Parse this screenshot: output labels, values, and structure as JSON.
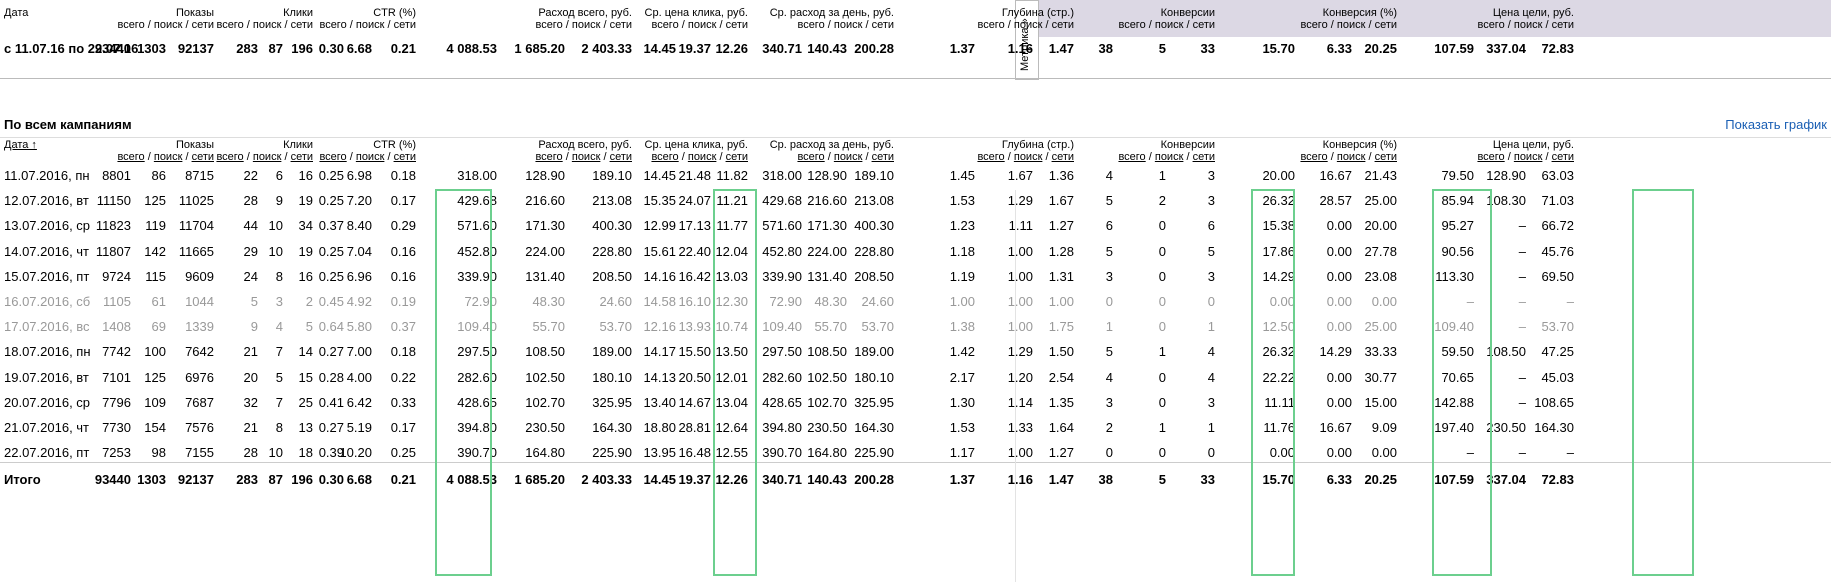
{
  "top": {
    "date_label": "Дата",
    "period": "с 11.07.16 по 22.07.16",
    "metrika": "Метрика »",
    "values": [
      "93440",
      "1303",
      "92137",
      "283",
      "87",
      "196",
      "0.30",
      "6.68",
      "0.21",
      "4 088.53",
      "1 685.20",
      "2 403.33",
      "14.45",
      "19.37",
      "12.26",
      "340.71",
      "140.43",
      "200.28",
      "1.37",
      "1.16",
      "1.47",
      "38",
      "5",
      "33",
      "15.70",
      "6.33",
      "20.25",
      "107.59",
      "337.04",
      "72.83"
    ]
  },
  "headers": {
    "shows": "Показы",
    "clicks": "Клики",
    "ctr": "CTR (%)",
    "spend": "Расход всего, руб.",
    "cpc": "Ср. цена клика, руб.",
    "daily": "Ср. расход за день, руб.",
    "depth": "Глубина (стр.)",
    "conv": "Конверсии",
    "conv_pct": "Конверсия (%)",
    "goal_price": "Цена цели, руб.",
    "sub": "всего / поиск / сети"
  },
  "section": {
    "title": "По всем кампаниям",
    "show_chart": "Показать график",
    "date_sort": "Дата ↑"
  },
  "rows": [
    {
      "date": "11.07.2016, пн",
      "muted": false,
      "v": [
        "8801",
        "86",
        "8715",
        "22",
        "6",
        "16",
        "0.25",
        "6.98",
        "0.18",
        "318.00",
        "128.90",
        "189.10",
        "14.45",
        "21.48",
        "11.82",
        "318.00",
        "128.90",
        "189.10",
        "1.45",
        "1.67",
        "1.36",
        "4",
        "1",
        "3",
        "20.00",
        "16.67",
        "21.43",
        "79.50",
        "128.90",
        "63.03"
      ]
    },
    {
      "date": "12.07.2016, вт",
      "muted": false,
      "v": [
        "11150",
        "125",
        "11025",
        "28",
        "9",
        "19",
        "0.25",
        "7.20",
        "0.17",
        "429.68",
        "216.60",
        "213.08",
        "15.35",
        "24.07",
        "11.21",
        "429.68",
        "216.60",
        "213.08",
        "1.53",
        "1.29",
        "1.67",
        "5",
        "2",
        "3",
        "26.32",
        "28.57",
        "25.00",
        "85.94",
        "108.30",
        "71.03"
      ]
    },
    {
      "date": "13.07.2016, ср",
      "muted": false,
      "v": [
        "11823",
        "119",
        "11704",
        "44",
        "10",
        "34",
        "0.37",
        "8.40",
        "0.29",
        "571.60",
        "171.30",
        "400.30",
        "12.99",
        "17.13",
        "11.77",
        "571.60",
        "171.30",
        "400.30",
        "1.23",
        "1.11",
        "1.27",
        "6",
        "0",
        "6",
        "15.38",
        "0.00",
        "20.00",
        "95.27",
        "–",
        "66.72"
      ]
    },
    {
      "date": "14.07.2016, чт",
      "muted": false,
      "v": [
        "11807",
        "142",
        "11665",
        "29",
        "10",
        "19",
        "0.25",
        "7.04",
        "0.16",
        "452.80",
        "224.00",
        "228.80",
        "15.61",
        "22.40",
        "12.04",
        "452.80",
        "224.00",
        "228.80",
        "1.18",
        "1.00",
        "1.28",
        "5",
        "0",
        "5",
        "17.86",
        "0.00",
        "27.78",
        "90.56",
        "–",
        "45.76"
      ]
    },
    {
      "date": "15.07.2016, пт",
      "muted": false,
      "v": [
        "9724",
        "115",
        "9609",
        "24",
        "8",
        "16",
        "0.25",
        "6.96",
        "0.16",
        "339.90",
        "131.40",
        "208.50",
        "14.16",
        "16.42",
        "13.03",
        "339.90",
        "131.40",
        "208.50",
        "1.19",
        "1.00",
        "1.31",
        "3",
        "0",
        "3",
        "14.29",
        "0.00",
        "23.08",
        "113.30",
        "–",
        "69.50"
      ]
    },
    {
      "date": "16.07.2016, сб",
      "muted": true,
      "v": [
        "1105",
        "61",
        "1044",
        "5",
        "3",
        "2",
        "0.45",
        "4.92",
        "0.19",
        "72.90",
        "48.30",
        "24.60",
        "14.58",
        "16.10",
        "12.30",
        "72.90",
        "48.30",
        "24.60",
        "1.00",
        "1.00",
        "1.00",
        "0",
        "0",
        "0",
        "0.00",
        "0.00",
        "0.00",
        "–",
        "–",
        "–"
      ]
    },
    {
      "date": "17.07.2016, вс",
      "muted": true,
      "v": [
        "1408",
        "69",
        "1339",
        "9",
        "4",
        "5",
        "0.64",
        "5.80",
        "0.37",
        "109.40",
        "55.70",
        "53.70",
        "12.16",
        "13.93",
        "10.74",
        "109.40",
        "55.70",
        "53.70",
        "1.38",
        "1.00",
        "1.75",
        "1",
        "0",
        "1",
        "12.50",
        "0.00",
        "25.00",
        "109.40",
        "–",
        "53.70"
      ]
    },
    {
      "date": "18.07.2016, пн",
      "muted": false,
      "v": [
        "7742",
        "100",
        "7642",
        "21",
        "7",
        "14",
        "0.27",
        "7.00",
        "0.18",
        "297.50",
        "108.50",
        "189.00",
        "14.17",
        "15.50",
        "13.50",
        "297.50",
        "108.50",
        "189.00",
        "1.42",
        "1.29",
        "1.50",
        "5",
        "1",
        "4",
        "26.32",
        "14.29",
        "33.33",
        "59.50",
        "108.50",
        "47.25"
      ]
    },
    {
      "date": "19.07.2016, вт",
      "muted": false,
      "v": [
        "7101",
        "125",
        "6976",
        "20",
        "5",
        "15",
        "0.28",
        "4.00",
        "0.22",
        "282.60",
        "102.50",
        "180.10",
        "14.13",
        "20.50",
        "12.01",
        "282.60",
        "102.50",
        "180.10",
        "2.17",
        "1.20",
        "2.54",
        "4",
        "0",
        "4",
        "22.22",
        "0.00",
        "30.77",
        "70.65",
        "–",
        "45.03"
      ]
    },
    {
      "date": "20.07.2016, ср",
      "muted": false,
      "v": [
        "7796",
        "109",
        "7687",
        "32",
        "7",
        "25",
        "0.41",
        "6.42",
        "0.33",
        "428.65",
        "102.70",
        "325.95",
        "13.40",
        "14.67",
        "13.04",
        "428.65",
        "102.70",
        "325.95",
        "1.30",
        "1.14",
        "1.35",
        "3",
        "0",
        "3",
        "11.11",
        "0.00",
        "15.00",
        "142.88",
        "–",
        "108.65"
      ]
    },
    {
      "date": "21.07.2016, чт",
      "muted": false,
      "v": [
        "7730",
        "154",
        "7576",
        "21",
        "8",
        "13",
        "0.27",
        "5.19",
        "0.17",
        "394.80",
        "230.50",
        "164.30",
        "18.80",
        "28.81",
        "12.64",
        "394.80",
        "230.50",
        "164.30",
        "1.53",
        "1.33",
        "1.64",
        "2",
        "1",
        "1",
        "11.76",
        "16.67",
        "9.09",
        "197.40",
        "230.50",
        "164.30"
      ]
    },
    {
      "date": "22.07.2016, пт",
      "muted": false,
      "v": [
        "7253",
        "98",
        "7155",
        "28",
        "10",
        "18",
        "0.39",
        "10.20",
        "0.25",
        "390.70",
        "164.80",
        "225.90",
        "13.95",
        "16.48",
        "12.55",
        "390.70",
        "164.80",
        "225.90",
        "1.17",
        "1.00",
        "1.27",
        "0",
        "0",
        "0",
        "0.00",
        "0.00",
        "0.00",
        "–",
        "–",
        "–"
      ]
    }
  ],
  "total": {
    "label": "Итого",
    "v": [
      "93440",
      "1303",
      "92137",
      "283",
      "87",
      "196",
      "0.30",
      "6.68",
      "0.21",
      "4 088.53",
      "1 685.20",
      "2 403.33",
      "14.45",
      "19.37",
      "12.26",
      "340.71",
      "140.43",
      "200.28",
      "1.37",
      "1.16",
      "1.47",
      "38",
      "5",
      "33",
      "15.70",
      "6.33",
      "20.25",
      "107.59",
      "337.04",
      "72.83"
    ]
  }
}
